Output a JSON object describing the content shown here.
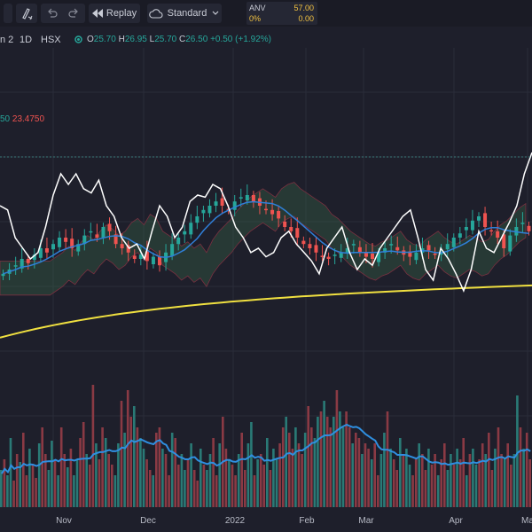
{
  "toolbar": {
    "replay_label": "Replay",
    "layout_label": "Standard",
    "quote": {
      "symbol": "ANV",
      "price": "57.00",
      "change_pct": "0%",
      "change": "0.00"
    }
  },
  "legend": {
    "interval_fragment": "n 2",
    "period": "1D",
    "exchange": "HSX",
    "open_label": "O",
    "open": "25.70",
    "high_label": "H",
    "high": "26.95",
    "low_label": "L",
    "low": "25.70",
    "close_label": "C",
    "close": "26.50",
    "change": "+0.50 (+1.92%)",
    "indicator_value_fragment": "50",
    "indicator_value": "23.4750"
  },
  "colors": {
    "background": "#1e1f2b",
    "up": "#26a69a",
    "down": "#ef5350",
    "ma_yellow": "#f0e040",
    "line_white": "#ffffff",
    "ma_blue": "#2f7fd8",
    "volume_ma": "#2f8fe0"
  },
  "chart_data": {
    "type": "candlestick",
    "x_tick_labels": [
      "Nov",
      "Dec",
      "2022",
      "Feb",
      "Mar",
      "Apr",
      "Ma"
    ],
    "price_range": [
      0,
      100
    ],
    "close_series": [
      38,
      40,
      42,
      45,
      43,
      47,
      50,
      48,
      52,
      55,
      53,
      50,
      52,
      56,
      58,
      55,
      60,
      58,
      52,
      50,
      48,
      45,
      47,
      44,
      46,
      42,
      48,
      52,
      55,
      58,
      62,
      65,
      68,
      70,
      72,
      70,
      68,
      72,
      74,
      75,
      72,
      70,
      68,
      66,
      64,
      60,
      58,
      55,
      52,
      50,
      48,
      46,
      45,
      47,
      48,
      50,
      52,
      48,
      46,
      45,
      48,
      50,
      52,
      49,
      47,
      46,
      48,
      50,
      49,
      47,
      48,
      52,
      55,
      57,
      60,
      63,
      65,
      60,
      58,
      55,
      50,
      56,
      60,
      62,
      58
    ],
    "white_line": [
      70,
      68,
      55,
      50,
      45,
      48,
      60,
      75,
      85,
      80,
      85,
      78,
      76,
      82,
      70,
      65,
      55,
      50,
      52,
      45,
      58,
      70,
      65,
      55,
      60,
      72,
      75,
      74,
      80,
      78,
      70,
      60,
      55,
      48,
      50,
      46,
      48,
      55,
      58,
      52,
      48,
      44,
      38,
      50,
      55,
      60,
      48,
      40,
      45,
      42,
      50,
      55,
      60,
      65,
      68,
      55,
      40,
      35,
      50,
      45,
      38,
      30,
      40,
      58,
      50,
      48,
      55,
      62,
      70,
      85,
      95
    ],
    "volume_values": [
      14,
      18,
      12,
      26,
      10,
      20,
      17,
      28,
      12,
      22,
      16,
      11,
      24,
      30,
      20,
      14,
      25,
      18,
      12,
      30,
      20,
      15,
      22,
      12,
      18,
      26,
      32,
      20,
      16,
      46,
      24,
      18,
      30,
      26,
      20,
      16,
      12,
      24,
      40,
      28,
      44,
      34,
      38,
      30,
      26,
      22,
      18,
      14,
      12,
      28,
      30,
      22,
      20,
      12,
      28,
      26,
      16,
      20,
      14,
      18,
      24,
      14,
      10,
      22,
      16,
      14,
      20,
      26,
      12,
      24,
      34,
      22,
      18,
      16,
      12,
      20,
      28,
      14,
      24,
      32,
      12,
      18,
      20,
      16,
      26,
      14,
      22,
      18,
      24,
      30,
      34,
      28,
      22,
      30,
      24,
      20,
      28,
      38,
      30,
      26,
      34,
      36,
      40,
      34,
      30,
      34,
      44,
      36,
      30,
      36,
      30,
      24,
      28,
      26,
      20,
      24,
      22,
      18,
      24,
      12,
      20,
      28,
      36,
      22,
      18,
      14,
      26,
      20,
      22,
      16,
      12,
      18,
      24,
      20,
      14,
      22,
      16,
      20,
      12,
      18,
      24,
      14,
      20,
      16,
      22,
      18,
      26,
      12,
      20,
      22,
      16,
      18,
      24,
      20,
      28,
      14,
      22,
      30,
      20,
      18,
      24,
      16,
      20,
      42,
      30,
      22,
      28,
      18
    ]
  }
}
